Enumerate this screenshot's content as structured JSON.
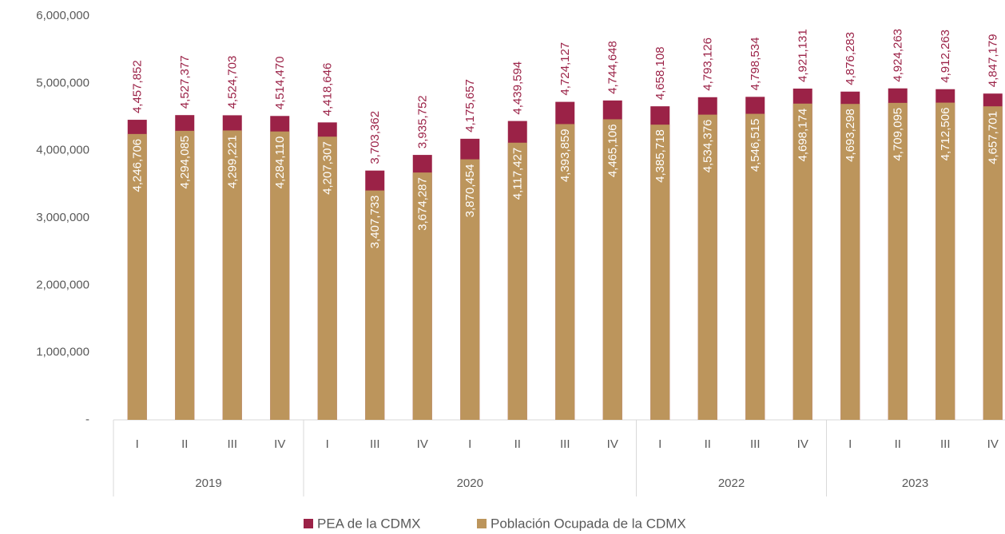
{
  "chart_data": {
    "type": "bar",
    "categories": [
      "I",
      "II",
      "III",
      "IV",
      "I",
      "III",
      "IV",
      "I",
      "II",
      "III",
      "IV",
      "I",
      "II",
      "III",
      "IV",
      "I",
      "II",
      "III",
      "IV"
    ],
    "groups": [
      {
        "label": "2019",
        "span": 4
      },
      {
        "label": "2020",
        "span": 7
      },
      {
        "label": "2022",
        "span": 4
      },
      {
        "label": "2023",
        "span": 4
      }
    ],
    "series": [
      {
        "name": "PEA de la CDMX",
        "color": "#9b2247",
        "values": [
          4457852,
          4527377,
          4524703,
          4514470,
          4418646,
          3703362,
          3935752,
          4175657,
          4439594,
          4724127,
          4744648,
          4658108,
          4793126,
          4798534,
          4921131,
          4876283,
          4924263,
          4912263,
          4847179
        ],
        "value_labels": [
          "4,457,852",
          "4,527,377",
          "4,524,703",
          "4,514,470",
          "4,418,646",
          "3,703,362",
          "3,935,752",
          "4,175,657",
          "4,439,594",
          "4,724,127",
          "4,744,648",
          "4,658,108",
          "4,793,126",
          "4,798,534",
          "4,921,131",
          "4,876,283",
          "4,924,263",
          "4,912,263",
          "4,847,179"
        ]
      },
      {
        "name": "Población Ocupada de la CDMX",
        "color": "#bc955c",
        "values": [
          4246706,
          4294085,
          4299221,
          4284110,
          4207307,
          3407733,
          3674287,
          3870454,
          4117427,
          4393859,
          4465106,
          4385718,
          4534376,
          4546515,
          4698174,
          4693298,
          4709095,
          4712506,
          4657701
        ],
        "value_labels": [
          "4,246,706",
          "4,294,085",
          "4,299,221",
          "4,284,110",
          "4,207,307",
          "3,407,733",
          "3,674,287",
          "3,870,454",
          "4,117,427",
          "4,393,859",
          "4,465,106",
          "4,385,718",
          "4,534,376",
          "4,546,515",
          "4,698,174",
          "4,693,298",
          "4,709,095",
          "4,712,506",
          "4,657,701"
        ]
      }
    ],
    "ylim": [
      0,
      6000000
    ],
    "yticks": [
      {
        "value": 0,
        "label": "-"
      },
      {
        "value": 1000000,
        "label": "1,000,000"
      },
      {
        "value": 2000000,
        "label": "2,000,000"
      },
      {
        "value": 3000000,
        "label": "3,000,000"
      },
      {
        "value": 4000000,
        "label": "4,000,000"
      },
      {
        "value": 5000000,
        "label": "5,000,000"
      },
      {
        "value": 6000000,
        "label": "6,000,000"
      }
    ]
  }
}
